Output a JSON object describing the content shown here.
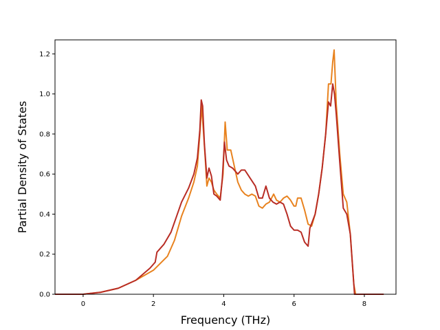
{
  "chart_data": {
    "type": "line",
    "title": "",
    "xlabel": "Frequency (THz)",
    "ylabel": "Partial Density of States",
    "xlim": [
      -0.8,
      8.9
    ],
    "ylim": [
      0.0,
      1.27
    ],
    "xticks": [
      0,
      2,
      4,
      6,
      8
    ],
    "yticks": [
      0.0,
      0.2,
      0.4,
      0.6,
      0.8,
      1.0,
      1.2
    ],
    "xtick_labels": [
      "0",
      "2",
      "4",
      "6",
      "8"
    ],
    "ytick_labels": [
      "0.0",
      "0.2",
      "0.4",
      "0.6",
      "0.8",
      "1.0",
      "1.2"
    ],
    "grid": false,
    "legend": "none",
    "series": [
      {
        "color": "#e8821e",
        "points": [
          [
            -0.8,
            0
          ],
          [
            0,
            0
          ],
          [
            0.5,
            0.01
          ],
          [
            1.0,
            0.03
          ],
          [
            1.5,
            0.07
          ],
          [
            2.0,
            0.12
          ],
          [
            2.4,
            0.19
          ],
          [
            2.6,
            0.27
          ],
          [
            2.8,
            0.39
          ],
          [
            3.0,
            0.48
          ],
          [
            3.15,
            0.56
          ],
          [
            3.25,
            0.64
          ],
          [
            3.32,
            0.8
          ],
          [
            3.37,
            0.94
          ],
          [
            3.42,
            0.82
          ],
          [
            3.48,
            0.66
          ],
          [
            3.52,
            0.54
          ],
          [
            3.58,
            0.58
          ],
          [
            3.65,
            0.56
          ],
          [
            3.72,
            0.52
          ],
          [
            3.8,
            0.5
          ],
          [
            3.9,
            0.48
          ],
          [
            3.98,
            0.6
          ],
          [
            4.04,
            0.86
          ],
          [
            4.1,
            0.72
          ],
          [
            4.2,
            0.72
          ],
          [
            4.3,
            0.64
          ],
          [
            4.4,
            0.56
          ],
          [
            4.5,
            0.52
          ],
          [
            4.6,
            0.5
          ],
          [
            4.7,
            0.49
          ],
          [
            4.8,
            0.5
          ],
          [
            4.9,
            0.49
          ],
          [
            5.0,
            0.44
          ],
          [
            5.1,
            0.43
          ],
          [
            5.2,
            0.45
          ],
          [
            5.3,
            0.46
          ],
          [
            5.42,
            0.5
          ],
          [
            5.5,
            0.47
          ],
          [
            5.6,
            0.46
          ],
          [
            5.7,
            0.48
          ],
          [
            5.8,
            0.49
          ],
          [
            5.9,
            0.47
          ],
          [
            6.0,
            0.44
          ],
          [
            6.05,
            0.44
          ],
          [
            6.1,
            0.48
          ],
          [
            6.2,
            0.48
          ],
          [
            6.3,
            0.42
          ],
          [
            6.4,
            0.35
          ],
          [
            6.5,
            0.34
          ],
          [
            6.6,
            0.4
          ],
          [
            6.7,
            0.5
          ],
          [
            6.8,
            0.63
          ],
          [
            6.9,
            0.8
          ],
          [
            6.98,
            1.05
          ],
          [
            7.05,
            1.05
          ],
          [
            7.1,
            1.16
          ],
          [
            7.14,
            1.22
          ],
          [
            7.2,
            0.95
          ],
          [
            7.3,
            0.7
          ],
          [
            7.4,
            0.5
          ],
          [
            7.5,
            0.46
          ],
          [
            7.6,
            0.3
          ],
          [
            7.7,
            0.05
          ],
          [
            7.75,
            0
          ],
          [
            8.55,
            0
          ]
        ]
      },
      {
        "color": "#b82c24",
        "points": [
          [
            -0.8,
            0
          ],
          [
            0,
            0
          ],
          [
            0.5,
            0.01
          ],
          [
            1.0,
            0.03
          ],
          [
            1.5,
            0.07
          ],
          [
            1.9,
            0.13
          ],
          [
            2.05,
            0.16
          ],
          [
            2.1,
            0.21
          ],
          [
            2.3,
            0.25
          ],
          [
            2.5,
            0.31
          ],
          [
            2.6,
            0.36
          ],
          [
            2.8,
            0.46
          ],
          [
            3.0,
            0.53
          ],
          [
            3.15,
            0.6
          ],
          [
            3.25,
            0.68
          ],
          [
            3.32,
            0.82
          ],
          [
            3.36,
            0.97
          ],
          [
            3.4,
            0.94
          ],
          [
            3.45,
            0.75
          ],
          [
            3.52,
            0.58
          ],
          [
            3.58,
            0.63
          ],
          [
            3.65,
            0.59
          ],
          [
            3.72,
            0.5
          ],
          [
            3.8,
            0.49
          ],
          [
            3.9,
            0.47
          ],
          [
            3.96,
            0.58
          ],
          [
            4.02,
            0.76
          ],
          [
            4.08,
            0.67
          ],
          [
            4.15,
            0.64
          ],
          [
            4.25,
            0.63
          ],
          [
            4.4,
            0.6
          ],
          [
            4.5,
            0.62
          ],
          [
            4.6,
            0.62
          ],
          [
            4.75,
            0.58
          ],
          [
            4.9,
            0.54
          ],
          [
            5.0,
            0.48
          ],
          [
            5.1,
            0.48
          ],
          [
            5.2,
            0.54
          ],
          [
            5.3,
            0.48
          ],
          [
            5.4,
            0.46
          ],
          [
            5.5,
            0.45
          ],
          [
            5.6,
            0.46
          ],
          [
            5.7,
            0.45
          ],
          [
            5.8,
            0.4
          ],
          [
            5.9,
            0.34
          ],
          [
            6.0,
            0.32
          ],
          [
            6.1,
            0.32
          ],
          [
            6.2,
            0.31
          ],
          [
            6.3,
            0.26
          ],
          [
            6.4,
            0.24
          ],
          [
            6.45,
            0.33
          ],
          [
            6.6,
            0.4
          ],
          [
            6.7,
            0.5
          ],
          [
            6.8,
            0.63
          ],
          [
            6.9,
            0.8
          ],
          [
            6.98,
            0.96
          ],
          [
            7.04,
            0.94
          ],
          [
            7.1,
            1.05
          ],
          [
            7.15,
            1.0
          ],
          [
            7.2,
            0.9
          ],
          [
            7.3,
            0.66
          ],
          [
            7.4,
            0.43
          ],
          [
            7.5,
            0.4
          ],
          [
            7.6,
            0.3
          ],
          [
            7.68,
            0.1
          ],
          [
            7.72,
            0
          ],
          [
            8.55,
            0
          ]
        ]
      }
    ]
  }
}
